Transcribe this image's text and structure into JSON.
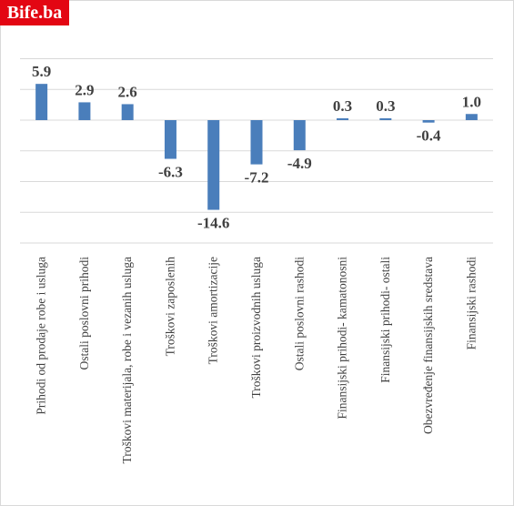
{
  "logo": {
    "text": "Bife.ba",
    "color": "#e30613"
  },
  "chart_data": {
    "type": "bar",
    "title": "",
    "xlabel": "",
    "ylabel": "",
    "ylim": [
      -20,
      10
    ],
    "grid": true,
    "bar_color": "#4a7ebb",
    "categories": [
      "Prihodi od prodaje robe i usluga",
      "Ostali poslovni prihodi",
      "Troškovi materijala, robe i vezanih usluga",
      "Troškovi zaposlenih",
      "Troškovi amortizacije",
      "Troškovi proizvodnih usluga",
      "Ostali poslovni rashodi",
      "Finansijski prihodi- kamatonosni",
      "Finansijski prihodi- ostali",
      "Obezvređenje finansijskih sredstava",
      "Finansijski rashodi"
    ],
    "values": [
      5.9,
      2.9,
      2.6,
      -6.3,
      -14.6,
      -7.2,
      -4.9,
      0.3,
      0.3,
      -0.4,
      1.0
    ],
    "labels": [
      "5.9",
      "2.9",
      "2.6",
      "-6.3",
      "-14.6",
      "-7.2",
      "-4.9",
      "0.3",
      "0.3",
      "-0.4",
      "1.0"
    ]
  }
}
